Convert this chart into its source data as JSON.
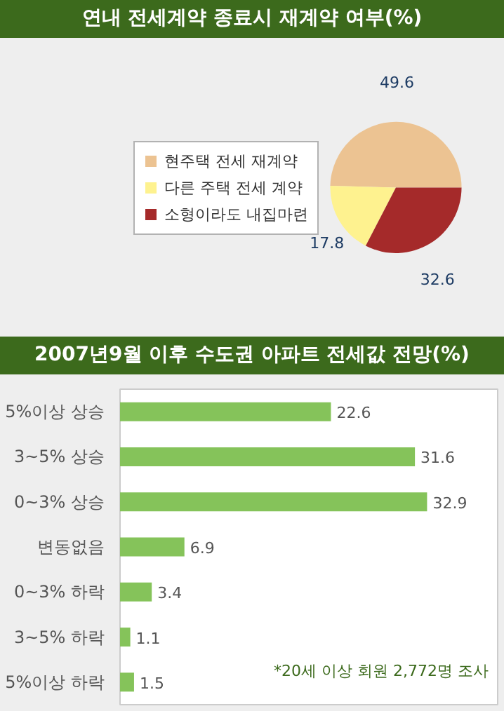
{
  "chart_data": [
    {
      "type": "pie",
      "title": "연내 전세계약 종료시 재계약 여부(%)",
      "categories": [
        "현주택 전세 재계약",
        "다른 주택 전세 계약",
        "소형이라도 내집마련"
      ],
      "values": [
        49.6,
        17.8,
        32.6
      ],
      "colors": [
        "#ecc392",
        "#fef28f",
        "#a52a2a"
      ],
      "data_labels": true,
      "legend": "left"
    },
    {
      "type": "bar",
      "orientation": "horizontal",
      "title": "2007년9월 이후 수도권 아파트 전세값 전망(%)",
      "categories": [
        "5%이상 상승",
        "3~5% 상승",
        "0~3% 상승",
        "변동없음",
        "0~3% 하락",
        "3~5% 하락",
        "5%이상 하락"
      ],
      "values": [
        22.6,
        31.6,
        32.9,
        6.9,
        3.4,
        1.1,
        1.5
      ],
      "color": "#85c35a",
      "data_labels": true,
      "annotations": [
        "*20세 이상 회원 2,772명 조사"
      ]
    }
  ]
}
